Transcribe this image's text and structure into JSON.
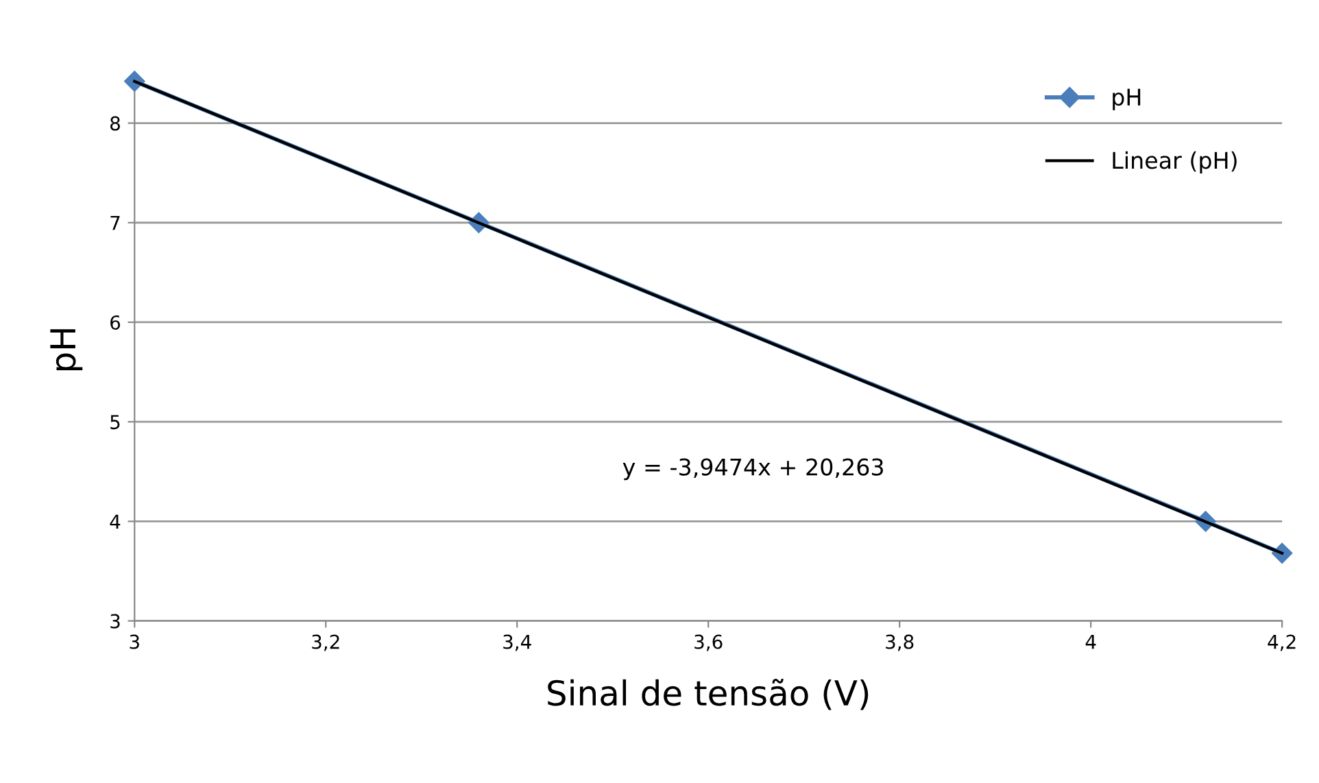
{
  "chart_data": {
    "type": "line",
    "xlabel": "Sinal de tensão (V)",
    "ylabel": "pH",
    "x": [
      3,
      3.36,
      4.12,
      4.2
    ],
    "series": [
      {
        "name": "pH",
        "color": "#4a7ebb",
        "marker": "diamond",
        "values": [
          8.42,
          7.0,
          4.0,
          3.68
        ]
      },
      {
        "name": "Linear (pH)",
        "color": "#000000",
        "marker": "none",
        "x": [
          3,
          4.2
        ],
        "values": [
          8.42,
          3.68
        ]
      }
    ],
    "xlim": [
      3,
      4.2
    ],
    "xticks": [
      3,
      {
        "value": 3.2,
        "label": "3,2"
      },
      {
        "value": 3.4,
        "label": "3,4"
      },
      {
        "value": 3.6,
        "label": "3,6"
      },
      {
        "value": 3.8,
        "label": "3,8"
      },
      4,
      {
        "value": 4.2,
        "label": "4,2"
      }
    ],
    "ylim": [
      3,
      8.45
    ],
    "yticks": [
      3,
      4,
      5,
      6,
      7,
      8
    ],
    "grid": "y",
    "legend": "top right",
    "annotations": [
      "y = -3,9474x + 20,263"
    ]
  }
}
